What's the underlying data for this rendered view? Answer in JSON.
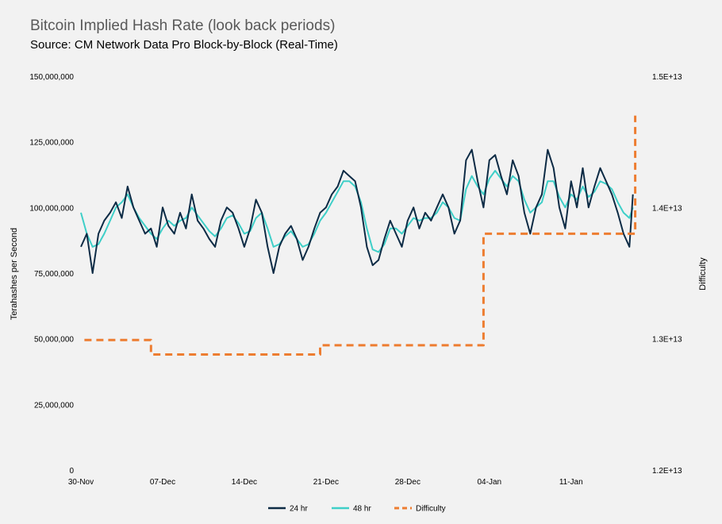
{
  "title": "Bitcoin Implied Hash Rate (look back periods)",
  "subtitle": "Source: CM Network Data Pro Block-by-Block (Real-Time)",
  "chart_data": {
    "type": "line",
    "title": "Bitcoin Implied Hash Rate (look back periods)",
    "subtitle": "Source: CM Network Data Pro Block-by-Block (Real-Time)",
    "ylabel": "Terahashes per Second",
    "y2label": "Difficulty",
    "ylim": [
      0,
      150000000
    ],
    "y2lim": [
      12000000000000.0,
      15000000000000.0
    ],
    "xlim": [
      0,
      48
    ],
    "x_tick_labels": [
      "30-Nov",
      "07-Dec",
      "14-Dec",
      "21-Dec",
      "28-Dec",
      "04-Jan",
      "11-Jan"
    ],
    "x_tick_days": [
      0,
      7,
      14,
      21,
      28,
      35,
      42
    ],
    "y_tick_labels": [
      "0",
      "25,000,000",
      "50,000,000",
      "75,000,000",
      "100,000,000",
      "125,000,000",
      "150,000,000"
    ],
    "y_tick_values": [
      0,
      25000000,
      50000000,
      75000000,
      100000000,
      125000000,
      150000000
    ],
    "y2_tick_labels": [
      "1.2E+13",
      "1.3E+13",
      "1.4E+13",
      "1.5E+13"
    ],
    "y2_tick_values": [
      12000000000000.0,
      13000000000000.0,
      14000000000000.0,
      15000000000000.0
    ],
    "grid": false,
    "legend_position": "bottom-center",
    "series": [
      {
        "name": "24 hr",
        "axis": "left",
        "color": "#0d2b45",
        "style": "solid",
        "x": [
          0,
          0.5,
          1,
          1.5,
          2,
          2.5,
          3,
          3.5,
          4,
          4.5,
          5,
          5.5,
          6,
          6.5,
          7,
          7.5,
          8,
          8.5,
          9,
          9.5,
          10,
          10.5,
          11,
          11.5,
          12,
          12.5,
          13,
          13.5,
          14,
          14.5,
          15,
          15.5,
          16,
          16.5,
          17,
          17.5,
          18,
          18.5,
          19,
          19.5,
          20,
          20.5,
          21,
          21.5,
          22,
          22.5,
          23,
          23.5,
          24,
          24.5,
          25,
          25.5,
          26,
          26.5,
          27,
          27.5,
          28,
          28.5,
          29,
          29.5,
          30,
          30.5,
          31,
          31.5,
          32,
          32.5,
          33,
          33.5,
          34,
          34.5,
          35,
          35.5,
          36,
          36.5,
          37,
          37.5,
          38,
          38.5,
          39,
          39.5,
          40,
          40.5,
          41,
          41.5,
          42,
          42.5,
          43,
          43.5,
          44,
          44.5,
          45,
          45.5,
          46,
          46.5,
          47,
          47.3
        ],
        "values": [
          85000000,
          90000000,
          75000000,
          90000000,
          95000000,
          98000000,
          102000000,
          96000000,
          108000000,
          100000000,
          95000000,
          90000000,
          92000000,
          85000000,
          100000000,
          93000000,
          90000000,
          98000000,
          92000000,
          105000000,
          95000000,
          92000000,
          88000000,
          85000000,
          95000000,
          100000000,
          98000000,
          92000000,
          85000000,
          92000000,
          103000000,
          98000000,
          85000000,
          75000000,
          85000000,
          90000000,
          93000000,
          88000000,
          80000000,
          85000000,
          92000000,
          98000000,
          100000000,
          105000000,
          108000000,
          114000000,
          112000000,
          110000000,
          100000000,
          85000000,
          78000000,
          80000000,
          88000000,
          95000000,
          90000000,
          85000000,
          95000000,
          100000000,
          92000000,
          98000000,
          95000000,
          100000000,
          105000000,
          100000000,
          90000000,
          95000000,
          118000000,
          122000000,
          110000000,
          100000000,
          118000000,
          120000000,
          112000000,
          105000000,
          118000000,
          112000000,
          98000000,
          90000000,
          100000000,
          105000000,
          122000000,
          115000000,
          100000000,
          92000000,
          110000000,
          100000000,
          115000000,
          100000000,
          108000000,
          115000000,
          110000000,
          105000000,
          98000000,
          90000000,
          85000000,
          105000000
        ]
      },
      {
        "name": "48 hr",
        "axis": "left",
        "color": "#3ecfc8",
        "style": "solid",
        "x": [
          0,
          0.5,
          1,
          1.5,
          2,
          2.5,
          3,
          3.5,
          4,
          4.5,
          5,
          5.5,
          6,
          6.5,
          7,
          7.5,
          8,
          8.5,
          9,
          9.5,
          10,
          10.5,
          11,
          11.5,
          12,
          12.5,
          13,
          13.5,
          14,
          14.5,
          15,
          15.5,
          16,
          16.5,
          17,
          17.5,
          18,
          18.5,
          19,
          19.5,
          20,
          20.5,
          21,
          21.5,
          22,
          22.5,
          23,
          23.5,
          24,
          24.5,
          25,
          25.5,
          26,
          26.5,
          27,
          27.5,
          28,
          28.5,
          29,
          29.5,
          30,
          30.5,
          31,
          31.5,
          32,
          32.5,
          33,
          33.5,
          34,
          34.5,
          35,
          35.5,
          36,
          36.5,
          37,
          37.5,
          38,
          38.5,
          39,
          39.5,
          40,
          40.5,
          41,
          41.5,
          42,
          42.5,
          43,
          43.5,
          44,
          44.5,
          45,
          45.5,
          46,
          46.5,
          47,
          47.3
        ],
        "values": [
          98000000,
          90000000,
          85000000,
          86000000,
          90000000,
          95000000,
          100000000,
          102000000,
          105000000,
          100000000,
          96000000,
          93000000,
          90000000,
          88000000,
          92000000,
          95000000,
          93000000,
          95000000,
          96000000,
          100000000,
          97000000,
          94000000,
          91000000,
          89000000,
          92000000,
          96000000,
          97000000,
          94000000,
          90000000,
          91000000,
          96000000,
          98000000,
          92000000,
          85000000,
          86000000,
          89000000,
          91000000,
          88000000,
          85000000,
          86000000,
          90000000,
          95000000,
          98000000,
          102000000,
          106000000,
          110000000,
          110000000,
          108000000,
          102000000,
          92000000,
          84000000,
          83000000,
          86000000,
          92000000,
          92000000,
          90000000,
          93000000,
          96000000,
          95000000,
          96000000,
          96000000,
          98000000,
          102000000,
          100000000,
          96000000,
          95000000,
          107000000,
          112000000,
          108000000,
          105000000,
          111000000,
          114000000,
          111000000,
          108000000,
          112000000,
          110000000,
          103000000,
          98000000,
          100000000,
          102000000,
          110000000,
          110000000,
          104000000,
          100000000,
          105000000,
          103000000,
          108000000,
          104000000,
          106000000,
          110000000,
          109000000,
          107000000,
          102000000,
          98000000,
          96000000,
          100000000
        ]
      },
      {
        "name": "Difficulty",
        "axis": "right",
        "color": "#ed7d31",
        "style": "dashed",
        "x": [
          0.3,
          6,
          6,
          20.5,
          20.5,
          34.5,
          34.5,
          47.5,
          47.5
        ],
        "values": [
          12990000000000.0,
          12990000000000.0,
          12880000000000.0,
          12880000000000.0,
          12950000000000.0,
          12950000000000.0,
          13800000000000.0,
          13800000000000.0,
          14700000000000.0
        ]
      }
    ]
  }
}
